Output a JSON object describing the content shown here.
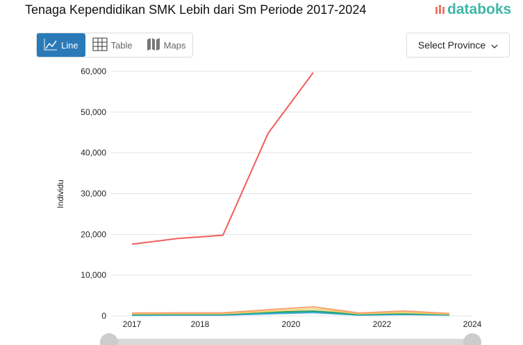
{
  "header": {
    "title": "Tenaga Kependidikan SMK Lebih dari Sm Periode 2017-2024",
    "logo": "databoks"
  },
  "tabs": [
    {
      "label": "Line",
      "icon": "line-chart-icon",
      "active": true
    },
    {
      "label": "Table",
      "icon": "table-icon"
    },
    {
      "label": "Maps",
      "icon": "map-icon"
    }
  ],
  "province_select": {
    "label": "Select Province"
  },
  "colors": {
    "accent": "#2a7ab8",
    "brand": "#3fb6a8"
  },
  "chart_data": {
    "type": "line",
    "title": "Tenaga Kependidikan SMK Lebih dari Sm Periode 2017-2024",
    "xlabel": "",
    "ylabel": "Individu",
    "ylim": [
      0,
      60000
    ],
    "yticks": [
      "0",
      "10,000",
      "20,000",
      "30,000",
      "40,000",
      "50,000",
      "60,000"
    ],
    "xticks": [
      "2017",
      "2018",
      "2020",
      "2022",
      "2024"
    ],
    "x": [
      2017,
      2018,
      2019,
      2020,
      2021,
      2022,
      2023,
      2024
    ],
    "grid": true,
    "series": [
      {
        "color": "#f25c5c",
        "values": [
          17600,
          19000,
          19800,
          44800,
          59700,
          null,
          null,
          null
        ]
      },
      {
        "color": "#f4a070",
        "values": [
          700,
          750,
          750,
          1500,
          2200,
          700,
          1200,
          600
        ]
      },
      {
        "color": "#f2d36b",
        "values": [
          500,
          550,
          550,
          1100,
          1700,
          550,
          800,
          450
        ]
      },
      {
        "color": "#2e9e6e",
        "values": [
          350,
          400,
          400,
          900,
          1200,
          400,
          600,
          350
        ]
      },
      {
        "color": "#2ab0c0",
        "values": [
          250,
          300,
          300,
          700,
          1000,
          300,
          450,
          250
        ]
      },
      {
        "color": "#4aa8e0",
        "values": [
          150,
          200,
          200,
          500,
          800,
          200,
          350,
          200
        ]
      }
    ]
  }
}
